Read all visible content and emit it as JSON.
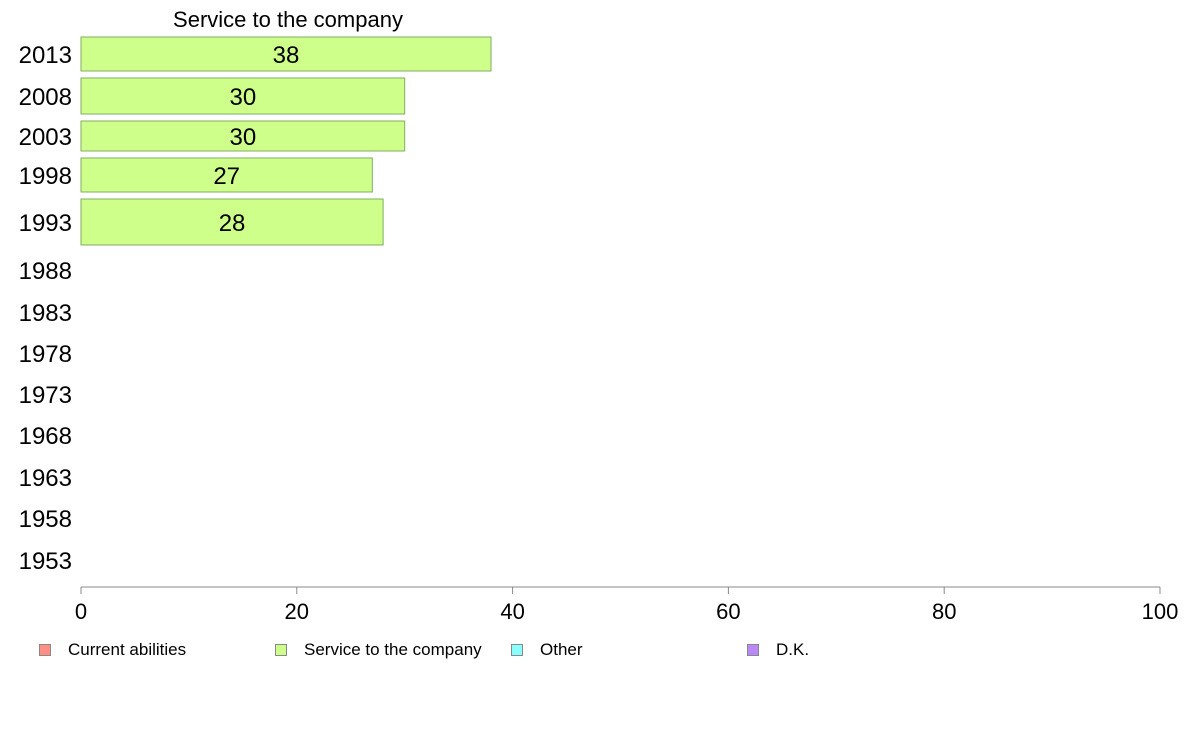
{
  "chart_data": {
    "type": "bar",
    "orientation": "horizontal",
    "title": "Service to the company",
    "categories": [
      "2013",
      "2008",
      "2003",
      "1998",
      "1993",
      "1988",
      "1983",
      "1978",
      "1973",
      "1968",
      "1963",
      "1958",
      "1953"
    ],
    "series": [
      {
        "name": "Service to the company",
        "values": [
          38,
          30,
          30,
          27,
          28,
          null,
          null,
          null,
          null,
          null,
          null,
          null,
          null
        ]
      }
    ],
    "data_labels": [
      "38",
      "30",
      "30",
      "27",
      "28"
    ],
    "xlim": [
      0,
      100
    ],
    "x_ticks": [
      "0",
      "20",
      "40",
      "60",
      "80",
      "100"
    ],
    "grid": false,
    "legend_position": "bottom"
  },
  "legend": {
    "items": [
      {
        "label": "Current abilities",
        "color": "#ff8f87"
      },
      {
        "label": "Service to the company",
        "color": "#cdff8a"
      },
      {
        "label": "Other",
        "color": "#8affff"
      },
      {
        "label": "D.K.",
        "color": "#bb88f7"
      }
    ]
  },
  "colors": {
    "bar_fill": "#cdff8a",
    "bar_stroke": "#7fae63",
    "axis": "#888888"
  }
}
